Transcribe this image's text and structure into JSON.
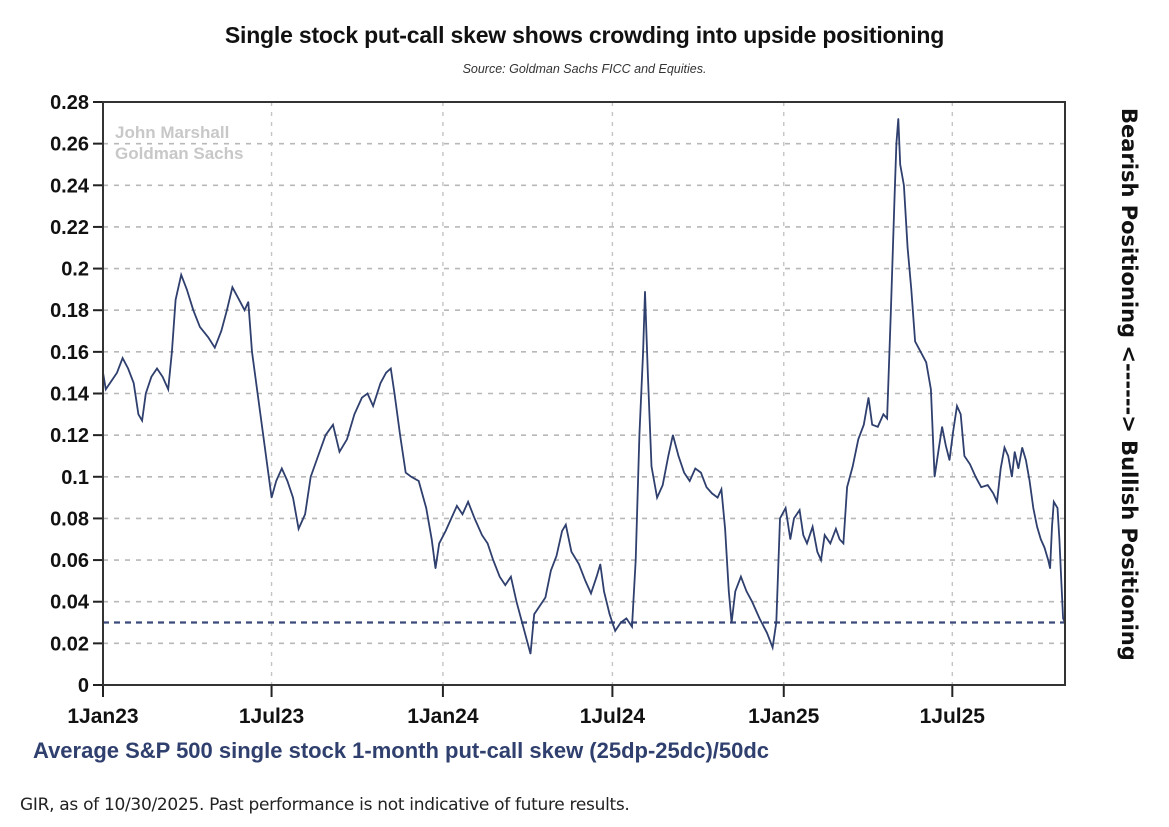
{
  "chart_data": {
    "type": "line",
    "title": "Single stock put-call skew shows crowding into upside positioning",
    "subtitle": "Source: Goldman Sachs FICC and Equities.",
    "xlabel": "Average S&P 500 single stock 1-month put-call skew (25dp-25dc)/50dc",
    "ylabel_right": "Bearish Positioning <------> Bullish Positioning",
    "watermark": [
      "John Marshall",
      "Goldman Sachs"
    ],
    "footer": "GIR, as of 10/30/2025. Past performance is not indicative of future results.",
    "ylim": [
      0,
      0.28
    ],
    "y_ticks": [
      "0",
      "0.02",
      "0.04",
      "0.06",
      "0.08",
      "0.1",
      "0.12",
      "0.14",
      "0.16",
      "0.18",
      "0.2",
      "0.22",
      "0.24",
      "0.26",
      "0.28"
    ],
    "x_range": [
      "2023-01-01",
      "2025-10-30"
    ],
    "x_ticks": [
      {
        "date": "2023-01-01",
        "label": "1Jan23"
      },
      {
        "date": "2023-07-01",
        "label": "1Jul23"
      },
      {
        "date": "2024-01-01",
        "label": "1Jan24"
      },
      {
        "date": "2024-07-01",
        "label": "1Jul24"
      },
      {
        "date": "2025-01-01",
        "label": "1Jan25"
      },
      {
        "date": "2025-07-01",
        "label": "1Jul25"
      }
    ],
    "grid": true,
    "reference_line": {
      "value": 0.03,
      "style": "dashed"
    },
    "series": [
      {
        "name": "Average S&P 500 single stock 1-month put-call skew",
        "color": "#2f3f6e",
        "points": [
          [
            "2023-01-01",
            0.15
          ],
          [
            "2023-01-04",
            0.142
          ],
          [
            "2023-01-10",
            0.146
          ],
          [
            "2023-01-16",
            0.15
          ],
          [
            "2023-01-22",
            0.157
          ],
          [
            "2023-01-28",
            0.152
          ],
          [
            "2023-02-03",
            0.145
          ],
          [
            "2023-02-08",
            0.13
          ],
          [
            "2023-02-12",
            0.127
          ],
          [
            "2023-02-16",
            0.14
          ],
          [
            "2023-02-22",
            0.148
          ],
          [
            "2023-02-28",
            0.152
          ],
          [
            "2023-03-06",
            0.148
          ],
          [
            "2023-03-12",
            0.142
          ],
          [
            "2023-03-16",
            0.16
          ],
          [
            "2023-03-20",
            0.185
          ],
          [
            "2023-03-26",
            0.197
          ],
          [
            "2023-04-01",
            0.19
          ],
          [
            "2023-04-08",
            0.18
          ],
          [
            "2023-04-15",
            0.172
          ],
          [
            "2023-04-24",
            0.167
          ],
          [
            "2023-05-01",
            0.162
          ],
          [
            "2023-05-08",
            0.17
          ],
          [
            "2023-05-14",
            0.18
          ],
          [
            "2023-05-20",
            0.191
          ],
          [
            "2023-05-26",
            0.186
          ],
          [
            "2023-06-02",
            0.18
          ],
          [
            "2023-06-06",
            0.184
          ],
          [
            "2023-06-10",
            0.16
          ],
          [
            "2023-06-16",
            0.14
          ],
          [
            "2023-06-22",
            0.12
          ],
          [
            "2023-06-28",
            0.1
          ],
          [
            "2023-07-01",
            0.09
          ],
          [
            "2023-07-06",
            0.098
          ],
          [
            "2023-07-12",
            0.104
          ],
          [
            "2023-07-18",
            0.098
          ],
          [
            "2023-07-24",
            0.09
          ],
          [
            "2023-07-30",
            0.075
          ],
          [
            "2023-08-06",
            0.082
          ],
          [
            "2023-08-12",
            0.1
          ],
          [
            "2023-08-20",
            0.11
          ],
          [
            "2023-08-28",
            0.12
          ],
          [
            "2023-09-05",
            0.125
          ],
          [
            "2023-09-12",
            0.112
          ],
          [
            "2023-09-20",
            0.118
          ],
          [
            "2023-09-28",
            0.13
          ],
          [
            "2023-10-06",
            0.138
          ],
          [
            "2023-10-12",
            0.14
          ],
          [
            "2023-10-18",
            0.134
          ],
          [
            "2023-10-26",
            0.145
          ],
          [
            "2023-11-01",
            0.15
          ],
          [
            "2023-11-06",
            0.152
          ],
          [
            "2023-11-10",
            0.14
          ],
          [
            "2023-11-16",
            0.12
          ],
          [
            "2023-11-22",
            0.102
          ],
          [
            "2023-11-28",
            0.1
          ],
          [
            "2023-12-06",
            0.098
          ],
          [
            "2023-12-14",
            0.085
          ],
          [
            "2023-12-20",
            0.07
          ],
          [
            "2023-12-24",
            0.056
          ],
          [
            "2023-12-28",
            0.068
          ],
          [
            "2024-01-04",
            0.074
          ],
          [
            "2024-01-10",
            0.08
          ],
          [
            "2024-01-16",
            0.086
          ],
          [
            "2024-01-22",
            0.082
          ],
          [
            "2024-01-28",
            0.088
          ],
          [
            "2024-02-04",
            0.08
          ],
          [
            "2024-02-12",
            0.072
          ],
          [
            "2024-02-18",
            0.068
          ],
          [
            "2024-02-24",
            0.06
          ],
          [
            "2024-03-02",
            0.052
          ],
          [
            "2024-03-08",
            0.048
          ],
          [
            "2024-03-14",
            0.052
          ],
          [
            "2024-03-20",
            0.04
          ],
          [
            "2024-03-26",
            0.03
          ],
          [
            "2024-04-01",
            0.02
          ],
          [
            "2024-04-04",
            0.015
          ],
          [
            "2024-04-08",
            0.034
          ],
          [
            "2024-04-14",
            0.038
          ],
          [
            "2024-04-20",
            0.042
          ],
          [
            "2024-04-26",
            0.055
          ],
          [
            "2024-05-02",
            0.062
          ],
          [
            "2024-05-08",
            0.074
          ],
          [
            "2024-05-12",
            0.077
          ],
          [
            "2024-05-18",
            0.064
          ],
          [
            "2024-05-26",
            0.058
          ],
          [
            "2024-06-02",
            0.05
          ],
          [
            "2024-06-08",
            0.044
          ],
          [
            "2024-06-14",
            0.052
          ],
          [
            "2024-06-18",
            0.058
          ],
          [
            "2024-06-22",
            0.045
          ],
          [
            "2024-06-28",
            0.034
          ],
          [
            "2024-07-04",
            0.026
          ],
          [
            "2024-07-10",
            0.03
          ],
          [
            "2024-07-16",
            0.032
          ],
          [
            "2024-07-22",
            0.028
          ],
          [
            "2024-07-26",
            0.06
          ],
          [
            "2024-07-30",
            0.12
          ],
          [
            "2024-08-03",
            0.16
          ],
          [
            "2024-08-05",
            0.189
          ],
          [
            "2024-08-08",
            0.15
          ],
          [
            "2024-08-12",
            0.105
          ],
          [
            "2024-08-18",
            0.09
          ],
          [
            "2024-08-24",
            0.096
          ],
          [
            "2024-08-30",
            0.11
          ],
          [
            "2024-09-04",
            0.12
          ],
          [
            "2024-09-10",
            0.11
          ],
          [
            "2024-09-16",
            0.102
          ],
          [
            "2024-09-22",
            0.098
          ],
          [
            "2024-09-28",
            0.104
          ],
          [
            "2024-10-04",
            0.102
          ],
          [
            "2024-10-10",
            0.095
          ],
          [
            "2024-10-16",
            0.092
          ],
          [
            "2024-10-22",
            0.09
          ],
          [
            "2024-10-26",
            0.094
          ],
          [
            "2024-10-30",
            0.075
          ],
          [
            "2024-11-03",
            0.045
          ],
          [
            "2024-11-06",
            0.03
          ],
          [
            "2024-11-10",
            0.045
          ],
          [
            "2024-11-16",
            0.052
          ],
          [
            "2024-11-22",
            0.045
          ],
          [
            "2024-11-28",
            0.04
          ],
          [
            "2024-12-06",
            0.032
          ],
          [
            "2024-12-14",
            0.025
          ],
          [
            "2024-12-20",
            0.018
          ],
          [
            "2024-12-24",
            0.03
          ],
          [
            "2024-12-28",
            0.08
          ],
          [
            "2025-01-03",
            0.085
          ],
          [
            "2025-01-08",
            0.07
          ],
          [
            "2025-01-12",
            0.08
          ],
          [
            "2025-01-18",
            0.084
          ],
          [
            "2025-01-22",
            0.072
          ],
          [
            "2025-01-26",
            0.068
          ],
          [
            "2025-02-01",
            0.076
          ],
          [
            "2025-02-06",
            0.064
          ],
          [
            "2025-02-10",
            0.06
          ],
          [
            "2025-02-14",
            0.072
          ],
          [
            "2025-02-20",
            0.068
          ],
          [
            "2025-02-26",
            0.075
          ],
          [
            "2025-03-02",
            0.07
          ],
          [
            "2025-03-06",
            0.068
          ],
          [
            "2025-03-10",
            0.095
          ],
          [
            "2025-03-16",
            0.105
          ],
          [
            "2025-03-22",
            0.118
          ],
          [
            "2025-03-28",
            0.125
          ],
          [
            "2025-04-02",
            0.138
          ],
          [
            "2025-04-06",
            0.125
          ],
          [
            "2025-04-12",
            0.124
          ],
          [
            "2025-04-18",
            0.13
          ],
          [
            "2025-04-22",
            0.128
          ],
          [
            "2025-04-26",
            0.18
          ],
          [
            "2025-04-30",
            0.235
          ],
          [
            "2025-05-02",
            0.26
          ],
          [
            "2025-05-04",
            0.272
          ],
          [
            "2025-05-06",
            0.25
          ],
          [
            "2025-05-10",
            0.24
          ],
          [
            "2025-05-14",
            0.21
          ],
          [
            "2025-05-18",
            0.19
          ],
          [
            "2025-05-22",
            0.165
          ],
          [
            "2025-05-28",
            0.16
          ],
          [
            "2025-06-03",
            0.155
          ],
          [
            "2025-06-08",
            0.142
          ],
          [
            "2025-06-12",
            0.1
          ],
          [
            "2025-06-16",
            0.112
          ],
          [
            "2025-06-20",
            0.124
          ],
          [
            "2025-06-24",
            0.115
          ],
          [
            "2025-06-28",
            0.108
          ],
          [
            "2025-07-02",
            0.122
          ],
          [
            "2025-07-06",
            0.134
          ],
          [
            "2025-07-10",
            0.13
          ],
          [
            "2025-07-14",
            0.11
          ],
          [
            "2025-07-20",
            0.106
          ],
          [
            "2025-07-26",
            0.1
          ],
          [
            "2025-08-01",
            0.095
          ],
          [
            "2025-08-08",
            0.096
          ],
          [
            "2025-08-14",
            0.092
          ],
          [
            "2025-08-18",
            0.088
          ],
          [
            "2025-08-22",
            0.104
          ],
          [
            "2025-08-26",
            0.114
          ],
          [
            "2025-08-30",
            0.11
          ],
          [
            "2025-09-03",
            0.1
          ],
          [
            "2025-09-06",
            0.112
          ],
          [
            "2025-09-10",
            0.104
          ],
          [
            "2025-09-14",
            0.114
          ],
          [
            "2025-09-18",
            0.108
          ],
          [
            "2025-09-22",
            0.098
          ],
          [
            "2025-09-26",
            0.085
          ],
          [
            "2025-09-30",
            0.076
          ],
          [
            "2025-10-04",
            0.07
          ],
          [
            "2025-10-08",
            0.066
          ],
          [
            "2025-10-12",
            0.06
          ],
          [
            "2025-10-14",
            0.056
          ],
          [
            "2025-10-16",
            0.076
          ],
          [
            "2025-10-18",
            0.088
          ],
          [
            "2025-10-22",
            0.085
          ],
          [
            "2025-10-24",
            0.07
          ],
          [
            "2025-10-26",
            0.05
          ],
          [
            "2025-10-28",
            0.032
          ],
          [
            "2025-10-30",
            0.03
          ]
        ]
      }
    ]
  }
}
